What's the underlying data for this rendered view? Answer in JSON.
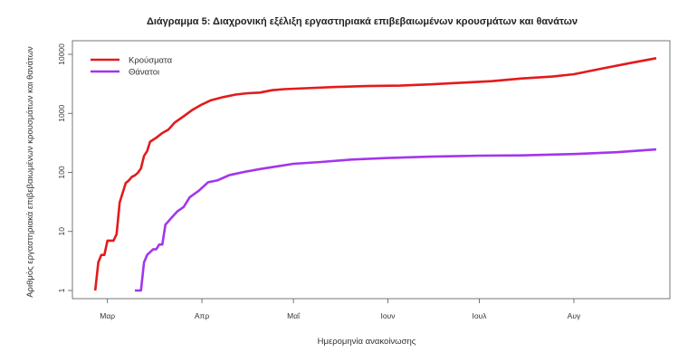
{
  "chart_data": {
    "type": "line",
    "title": "Διάγραμμα 5: Διαχρονική εξέλιξη εργαστηριακά επιβεβαιωμένων κρουσμάτων και θανάτων",
    "xlabel": "Ημερομηνία ανακοίνωσης",
    "ylabel": "Αριθμός εργαστηριακά επιβεβαιωμένων κρουσμάτων και θανάτων",
    "y_scale": "log",
    "ylim": [
      1,
      10000
    ],
    "y_ticks": [
      1,
      10,
      100,
      1000,
      10000
    ],
    "y_tick_labels": [
      "1",
      "10",
      "100",
      "1000",
      "10000"
    ],
    "xlim": [
      "2020-02-20",
      "2020-08-31"
    ],
    "x_ticks": [
      "2020-03-01",
      "2020-04-01",
      "2020-05-01",
      "2020-06-01",
      "2020-07-01",
      "2020-08-01"
    ],
    "x_tick_labels": [
      "Μαρ",
      "Απρ",
      "Μαΐ",
      "Ιουν",
      "Ιουλ",
      "Αυγ"
    ],
    "grid": false,
    "legend": "top-left",
    "series": [
      {
        "name": "Κρούσματα",
        "color": "#e31a1c",
        "points": [
          [
            "2020-02-26",
            1
          ],
          [
            "2020-02-27",
            3
          ],
          [
            "2020-02-28",
            4
          ],
          [
            "2020-02-29",
            4
          ],
          [
            "2020-03-01",
            7
          ],
          [
            "2020-03-03",
            7
          ],
          [
            "2020-03-04",
            9
          ],
          [
            "2020-03-05",
            31
          ],
          [
            "2020-03-06",
            45
          ],
          [
            "2020-03-07",
            66
          ],
          [
            "2020-03-08",
            73
          ],
          [
            "2020-03-09",
            84
          ],
          [
            "2020-03-10",
            89
          ],
          [
            "2020-03-11",
            99
          ],
          [
            "2020-03-12",
            117
          ],
          [
            "2020-03-13",
            190
          ],
          [
            "2020-03-14",
            228
          ],
          [
            "2020-03-15",
            331
          ],
          [
            "2020-03-17",
            387
          ],
          [
            "2020-03-19",
            464
          ],
          [
            "2020-03-21",
            530
          ],
          [
            "2020-03-23",
            695
          ],
          [
            "2020-03-26",
            892
          ],
          [
            "2020-03-29",
            1156
          ],
          [
            "2020-04-01",
            1415
          ],
          [
            "2020-04-04",
            1673
          ],
          [
            "2020-04-08",
            1884
          ],
          [
            "2020-04-12",
            2081
          ],
          [
            "2020-04-16",
            2192
          ],
          [
            "2020-04-20",
            2245
          ],
          [
            "2020-04-24",
            2463
          ],
          [
            "2020-04-28",
            2566
          ],
          [
            "2020-05-05",
            2663
          ],
          [
            "2020-05-15",
            2800
          ],
          [
            "2020-05-25",
            2900
          ],
          [
            "2020-06-05",
            2950
          ],
          [
            "2020-06-15",
            3100
          ],
          [
            "2020-06-25",
            3300
          ],
          [
            "2020-07-05",
            3500
          ],
          [
            "2020-07-15",
            3900
          ],
          [
            "2020-07-25",
            4200
          ],
          [
            "2020-08-01",
            4600
          ],
          [
            "2020-08-10",
            5700
          ],
          [
            "2020-08-20",
            7200
          ],
          [
            "2020-08-28",
            8600
          ]
        ]
      },
      {
        "name": "Θάνατοι",
        "color": "#a335ee",
        "points": [
          [
            "2020-03-10",
            1
          ],
          [
            "2020-03-12",
            1
          ],
          [
            "2020-03-13",
            3
          ],
          [
            "2020-03-14",
            4
          ],
          [
            "2020-03-16",
            5
          ],
          [
            "2020-03-17",
            5
          ],
          [
            "2020-03-18",
            6
          ],
          [
            "2020-03-19",
            6
          ],
          [
            "2020-03-20",
            13
          ],
          [
            "2020-03-22",
            17
          ],
          [
            "2020-03-24",
            22
          ],
          [
            "2020-03-26",
            26
          ],
          [
            "2020-03-28",
            38
          ],
          [
            "2020-03-31",
            49
          ],
          [
            "2020-04-03",
            68
          ],
          [
            "2020-04-06",
            73
          ],
          [
            "2020-04-10",
            90
          ],
          [
            "2020-04-15",
            102
          ],
          [
            "2020-04-20",
            114
          ],
          [
            "2020-04-25",
            125
          ],
          [
            "2020-05-01",
            140
          ],
          [
            "2020-05-10",
            150
          ],
          [
            "2020-05-20",
            165
          ],
          [
            "2020-06-01",
            175
          ],
          [
            "2020-06-15",
            185
          ],
          [
            "2020-07-01",
            192
          ],
          [
            "2020-07-15",
            194
          ],
          [
            "2020-08-01",
            205
          ],
          [
            "2020-08-15",
            220
          ],
          [
            "2020-08-28",
            245
          ]
        ]
      }
    ]
  }
}
